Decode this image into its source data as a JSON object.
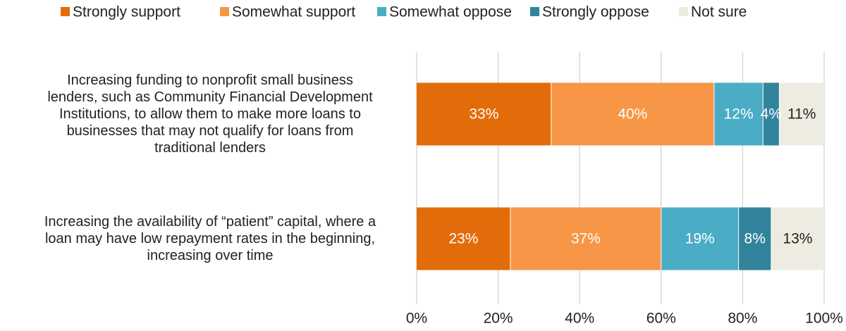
{
  "chart_data": {
    "type": "bar",
    "orientation": "horizontal",
    "stacked": true,
    "categories": [
      "Increasing funding to nonprofit small business lenders, such as Community Financial Development Institutions, to allow them to make more loans to businesses that may not qualify for loans from traditional lenders",
      "Increasing the availability of “patient” capital, where a loan may have low repayment rates in the beginning, increasing over time"
    ],
    "category_lines": [
      [
        "Increasing funding to nonprofit small business",
        "lenders, such as Community Financial Development",
        "Institutions, to allow them to make more loans to",
        "businesses that may not qualify for loans from",
        "traditional lenders"
      ],
      [
        "Increasing the availability of “patient” capital, where a",
        "loan may have low repayment rates in the beginning,",
        "increasing over time"
      ]
    ],
    "series": [
      {
        "name": "Strongly support",
        "color": "#E36C0A",
        "label_color": "#ffffff",
        "values": [
          33,
          23
        ],
        "labels": [
          "33%",
          "23%"
        ]
      },
      {
        "name": "Somewhat support",
        "color": "#F79646",
        "label_color": "#ffffff",
        "values": [
          40,
          37
        ],
        "labels": [
          "40%",
          "37%"
        ]
      },
      {
        "name": "Somewhat oppose",
        "color": "#4BACC6",
        "label_color": "#ffffff",
        "values": [
          12,
          19
        ],
        "labels": [
          "12%",
          "19%"
        ]
      },
      {
        "name": "Strongly oppose",
        "color": "#31849B",
        "label_color": "#ffffff",
        "values": [
          4,
          8
        ],
        "labels": [
          "4%",
          "8%"
        ]
      },
      {
        "name": "Not sure",
        "color": "#EEECE1",
        "label_color": "#222222",
        "values": [
          11,
          13
        ],
        "labels": [
          "11%",
          "13%"
        ]
      }
    ],
    "xlim": [
      0,
      100
    ],
    "ticks": [
      0,
      20,
      40,
      60,
      80,
      100
    ],
    "tick_labels": [
      "0%",
      "20%",
      "40%",
      "60%",
      "80%",
      "100%"
    ],
    "grid": true,
    "legend_position": "top"
  }
}
